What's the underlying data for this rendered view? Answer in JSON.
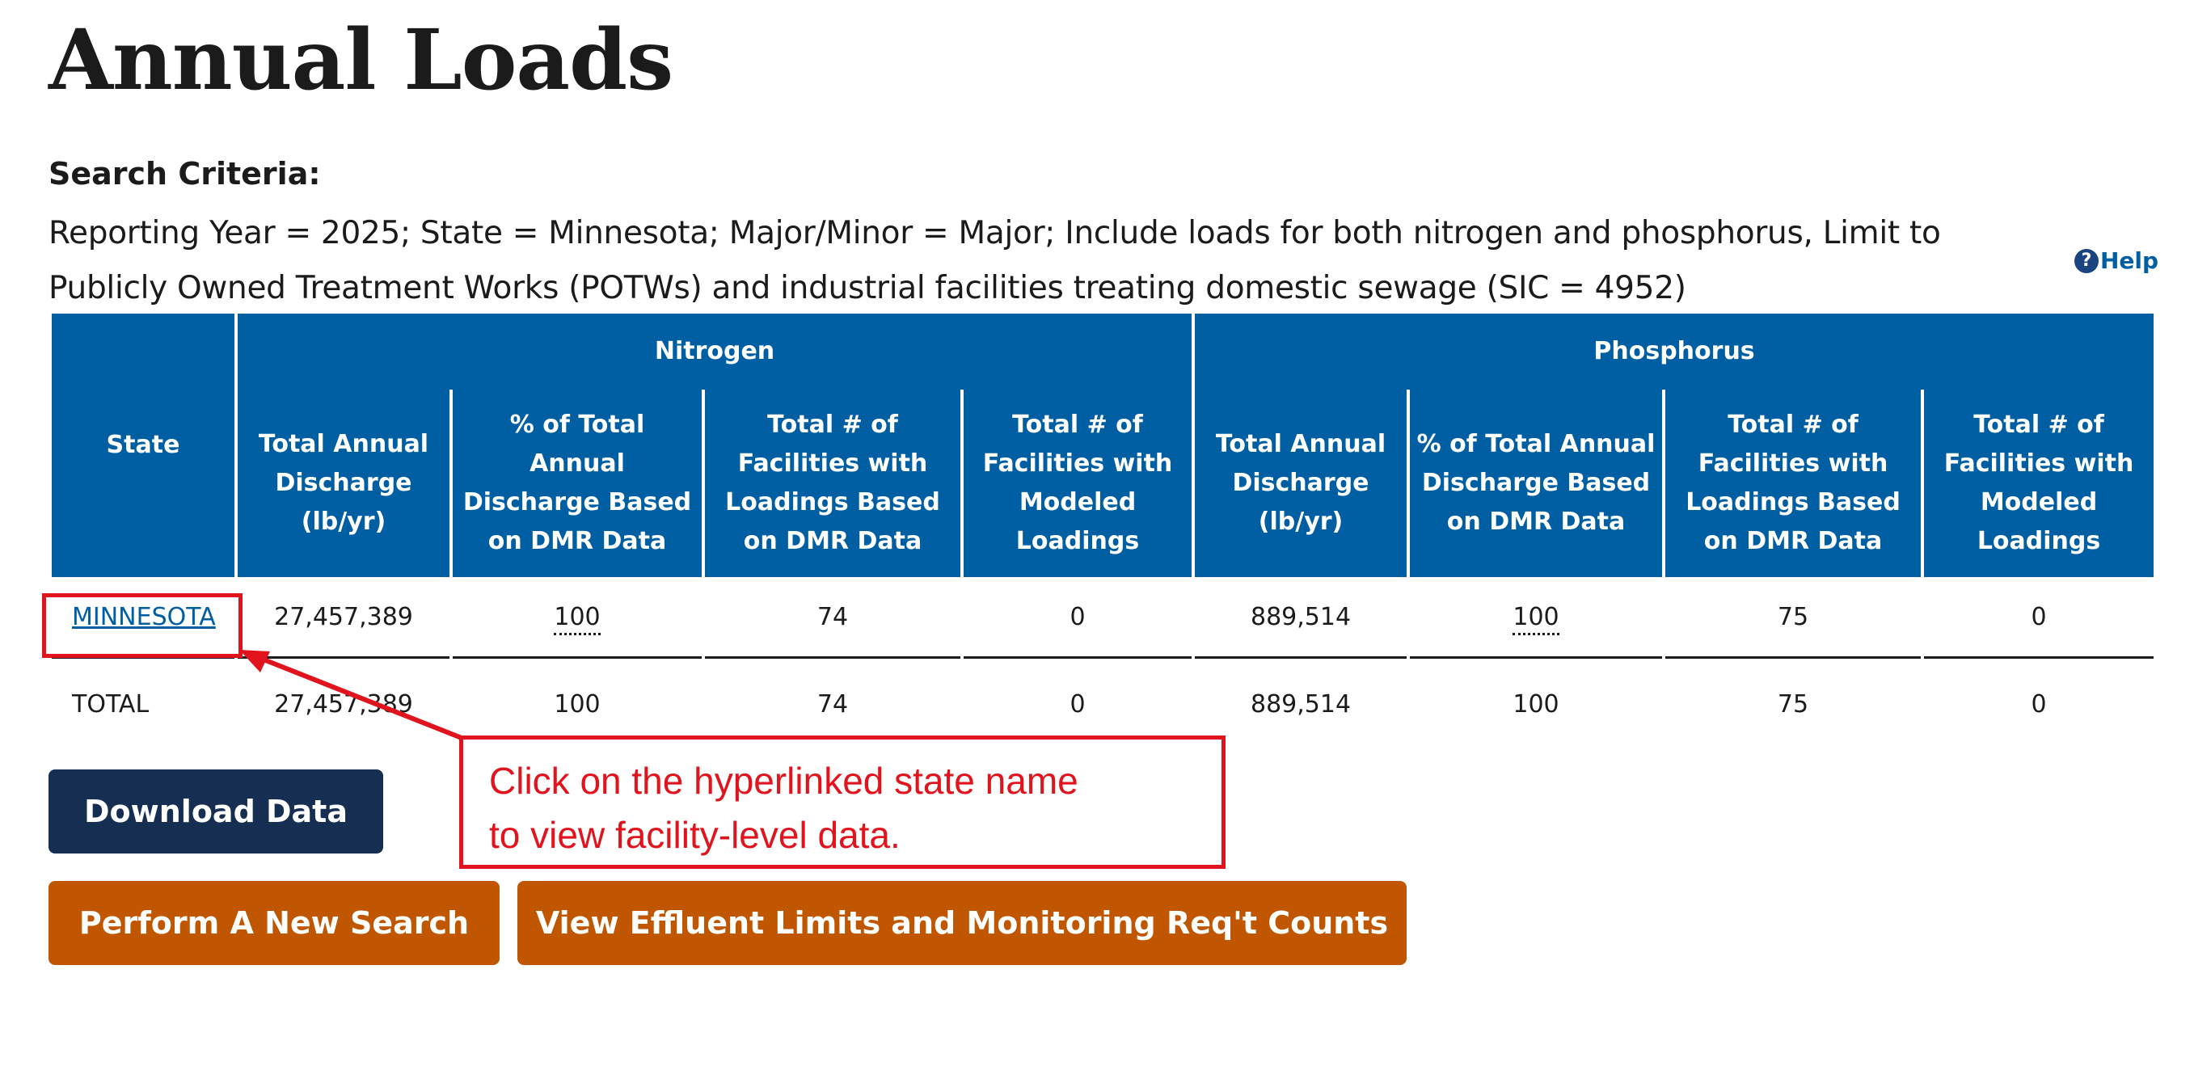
{
  "page": {
    "title": "Annual Loads"
  },
  "search": {
    "label": "Search Criteria:",
    "text": "Reporting Year = 2025; State = Minnesota; Major/Minor = Major; Include loads for both nitrogen and phosphorus, Limit to Publicly Owned Treatment Works (POTWs) and industrial facilities treating domestic sewage (SIC = 4952)"
  },
  "help": {
    "icon": "question-circle-icon",
    "label": "Help"
  },
  "table": {
    "state_header": "State",
    "groups": [
      "Nitrogen",
      "Phosphorus"
    ],
    "columns": [
      "Total Annual Discharge (lb/yr)",
      "% of Total Annual Discharge Based on DMR Data",
      "Total # of Facilities with Loadings Based on DMR Data",
      "Total # of Facilities with Modeled Loadings",
      "Total Annual Discharge (lb/yr)",
      "% of Total Annual Discharge Based on DMR Data",
      "Total # of Facilities with Loadings Based on DMR Data",
      "Total # of Facilities with Modeled Loadings"
    ],
    "rows": [
      {
        "state": "MINNESOTA",
        "n_discharge": "27,457,389",
        "n_pct_dmr": "100",
        "n_fac_dmr": "74",
        "n_fac_modeled": "0",
        "p_discharge": "889,514",
        "p_pct_dmr": "100",
        "p_fac_dmr": "75",
        "p_fac_modeled": "0"
      }
    ],
    "total": {
      "label": "TOTAL",
      "n_discharge": "27,457,389",
      "n_pct_dmr": "100",
      "n_fac_dmr": "74",
      "n_fac_modeled": "0",
      "p_discharge": "889,514",
      "p_pct_dmr": "100",
      "p_fac_dmr": "75",
      "p_fac_modeled": "0"
    }
  },
  "buttons": {
    "download": "Download Data",
    "new_search": "Perform A New Search",
    "effluent": "View Effluent Limits and Monitoring Req't Counts"
  },
  "annotation": {
    "callout_line1": "Click on the hyperlinked state name",
    "callout_line2": "to view facility-level data.",
    "color": "#e1131d"
  },
  "colors": {
    "header_blue": "#005ea2",
    "download_navy": "#162e51",
    "action_orange": "#c05600",
    "link_blue": "#005ea2"
  }
}
